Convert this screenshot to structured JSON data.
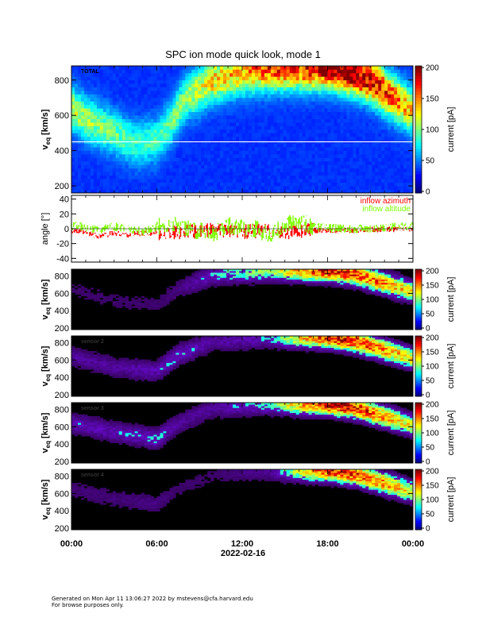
{
  "title": "SPC ion mode quick look, mode 1",
  "date_label": "2022-02-16",
  "x_ticks": [
    "00:00",
    "06:00",
    "12:00",
    "18:00",
    "00:00"
  ],
  "footer": {
    "line1": "Generated on Mon Apr 11 13:06:27 2022 by mstevens@cfa.harvard.edu",
    "line2": "For browse purposes only."
  },
  "colors": {
    "spectrogram_background": "#000000",
    "total_background": "#1f2fd6",
    "azimuth": "#ff0000",
    "altitude": "#7fff00"
  },
  "chart_data": [
    {
      "type": "heatmap",
      "panel_label": "TOTAL",
      "ylabel": "v_eq [km/s]",
      "ylim": [
        160,
        880
      ],
      "yticks": [
        200,
        400,
        600,
        800
      ],
      "colorbar": {
        "label": "current [pA]",
        "range": [
          0,
          200
        ],
        "ticks": [
          0,
          50,
          100,
          150,
          200
        ]
      },
      "horizontal_line_y": 450,
      "ridge_hours": [
        0,
        1.5,
        3,
        4.5,
        6,
        7,
        8,
        10,
        12,
        14,
        16,
        18,
        19,
        20,
        21,
        22,
        23,
        24
      ],
      "ridge_velocity": [
        640,
        560,
        500,
        440,
        460,
        560,
        700,
        800,
        850,
        870,
        870,
        880,
        860,
        840,
        800,
        740,
        680,
        620
      ],
      "peak_current": [
        90,
        80,
        70,
        60,
        60,
        70,
        80,
        110,
        120,
        150,
        150,
        200,
        200,
        190,
        170,
        150,
        130,
        110
      ]
    },
    {
      "type": "line",
      "ylabel": "angle [°]",
      "ylim": [
        -45,
        45
      ],
      "yticks": [
        -40,
        -20,
        0,
        20,
        40
      ],
      "series": [
        {
          "name": "inflow azimuth",
          "x": [
            0,
            1,
            2,
            3,
            4,
            5,
            6,
            7,
            8,
            9,
            10,
            11,
            12,
            13,
            14,
            15,
            16,
            17,
            18,
            19,
            20,
            21,
            22,
            23,
            24
          ],
          "values": [
            -2,
            -6,
            -10,
            -6,
            -8,
            -6,
            -6,
            -5,
            -4,
            -3,
            -2,
            -3,
            -4,
            -3,
            -2,
            -6,
            -3,
            -2,
            -2,
            -2,
            -2,
            -1,
            -1,
            -1,
            0
          ]
        },
        {
          "name": "inflow altitude",
          "x": [
            0,
            1,
            2,
            3,
            4,
            5,
            6,
            7,
            8,
            9,
            10,
            11,
            12,
            13,
            14,
            15,
            16,
            17,
            18,
            19,
            20,
            21,
            22,
            23,
            24
          ],
          "values": [
            4,
            2,
            -2,
            3,
            0,
            -4,
            2,
            6,
            2,
            -3,
            -6,
            4,
            2,
            0,
            -10,
            5,
            10,
            3,
            1,
            0,
            0,
            1,
            2,
            3,
            4
          ]
        }
      ]
    },
    {
      "type": "heatmap",
      "panel_label": "",
      "ylabel": "v_eq [km/s]",
      "ylim": [
        180,
        880
      ],
      "yticks": [
        200,
        400,
        600,
        800
      ],
      "colorbar": {
        "label": "current [pA]",
        "range": [
          0,
          200
        ],
        "ticks": [
          0,
          50,
          100,
          150,
          200
        ]
      },
      "ridge_hours": [
        0,
        3,
        6,
        7.5,
        10,
        14,
        18,
        20,
        22,
        24
      ],
      "ridge_velocity": [
        650,
        520,
        470,
        650,
        820,
        870,
        870,
        820,
        720,
        620
      ],
      "peak_current": [
        20,
        20,
        20,
        30,
        60,
        90,
        180,
        160,
        140,
        110
      ]
    },
    {
      "type": "heatmap",
      "panel_label": "sensor 2",
      "ylabel": "v_eq [km/s]",
      "ylim": [
        180,
        880
      ],
      "yticks": [
        200,
        400,
        600,
        800
      ],
      "colorbar": {
        "label": "current [pA]",
        "range": [
          0,
          200
        ],
        "ticks": [
          0,
          50,
          100,
          150,
          200
        ]
      },
      "ridge_hours": [
        0,
        3,
        6,
        7.5,
        10,
        14,
        18,
        20,
        22,
        24
      ],
      "ridge_velocity": [
        640,
        520,
        470,
        660,
        820,
        870,
        870,
        820,
        720,
        620
      ],
      "peak_current": [
        40,
        40,
        50,
        60,
        40,
        60,
        180,
        170,
        140,
        110
      ]
    },
    {
      "type": "heatmap",
      "panel_label": "sensor 3",
      "ylabel": "v_eq [km/s]",
      "ylim": [
        180,
        880
      ],
      "yticks": [
        200,
        400,
        600,
        800
      ],
      "colorbar": {
        "label": "current [pA]",
        "range": [
          0,
          200
        ],
        "ticks": [
          0,
          50,
          100,
          150,
          200
        ]
      },
      "ridge_hours": [
        0,
        3,
        6,
        7.5,
        10,
        14,
        18,
        20,
        22,
        24
      ],
      "ridge_velocity": [
        650,
        540,
        460,
        640,
        820,
        870,
        870,
        820,
        720,
        620
      ],
      "peak_current": [
        50,
        50,
        60,
        40,
        40,
        70,
        190,
        170,
        140,
        110
      ]
    },
    {
      "type": "heatmap",
      "panel_label": "sensor 4",
      "ylabel": "v_eq [km/s]",
      "ylim": [
        180,
        880
      ],
      "yticks": [
        200,
        400,
        600,
        800
      ],
      "colorbar": {
        "label": "current [pA]",
        "range": [
          0,
          200
        ],
        "ticks": [
          0,
          50,
          100,
          150,
          200
        ]
      },
      "ridge_hours": [
        0,
        3,
        6,
        7.5,
        10,
        14,
        18,
        20,
        22,
        24
      ],
      "ridge_velocity": [
        650,
        540,
        480,
        640,
        820,
        870,
        870,
        820,
        720,
        620
      ],
      "peak_current": [
        25,
        25,
        30,
        20,
        20,
        40,
        170,
        160,
        140,
        110
      ]
    }
  ]
}
